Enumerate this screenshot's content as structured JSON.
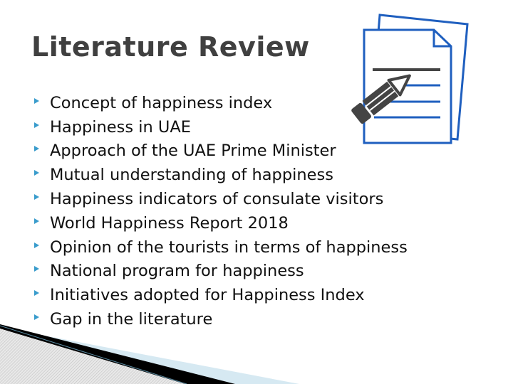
{
  "title": "Literature Review",
  "bullets": [
    "Concept of happiness index",
    "Happiness in UAE",
    "Approach of the UAE Prime Minister",
    "Mutual understanding of happiness",
    "Happiness indicators of consulate visitors",
    "World Happiness Report 2018",
    "Opinion of the tourists in terms of happiness",
    "National program for happiness",
    "Initiatives adopted for Happiness Index",
    "Gap in the literature"
  ],
  "colors": {
    "title": "#404040",
    "bullet": "#3a9ccc",
    "icon_blue": "#1f5fbf",
    "icon_gray": "#444444",
    "wedge_blue": "#d6e9f2"
  },
  "icons": {
    "document": "document-with-pencil-icon",
    "bullet": "triangle-bullet-icon"
  }
}
